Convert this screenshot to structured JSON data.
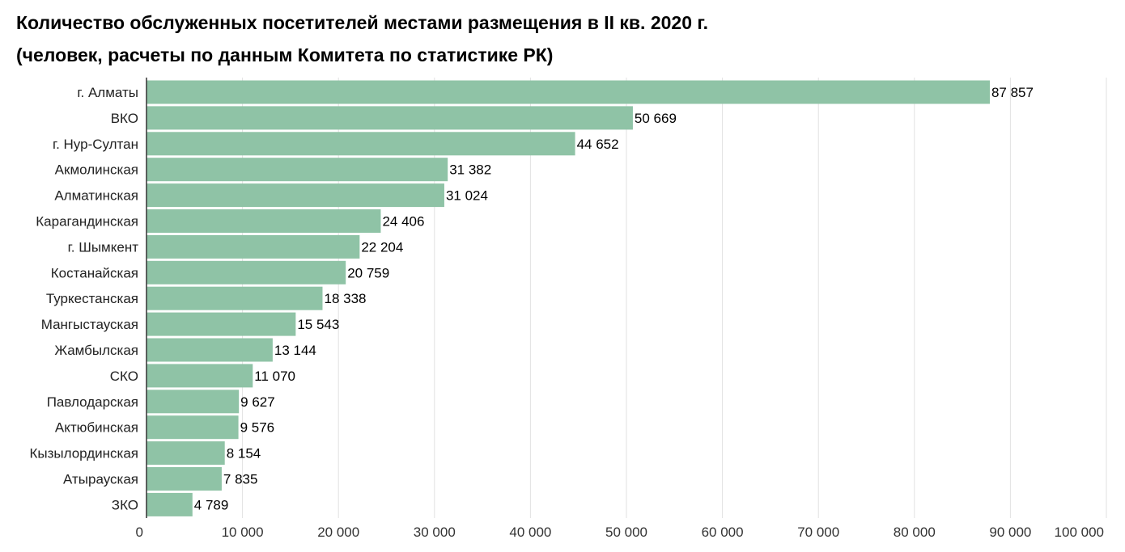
{
  "chart_data": {
    "type": "bar",
    "orientation": "horizontal",
    "title": "Количество обслуженных посетителей местами размещения в II кв. 2020 г.",
    "subtitle": "(человек, расчеты по данным Комитета по статистике РК)",
    "xlabel": "",
    "ylabel": "",
    "categories": [
      "г. Алматы",
      "ВКО",
      "г. Нур-Султан",
      "Акмолинская",
      "Алматинская",
      "Карагандинская",
      "г. Шымкент",
      "Костанайская",
      "Туркестанская",
      "Мангыстауская",
      "Жамбылская",
      "СКО",
      "Павлодарская",
      "Актюбинская",
      "Кызылординская",
      "Атырауская",
      "ЗКО"
    ],
    "values": [
      87857,
      50669,
      44652,
      31382,
      31024,
      24406,
      22204,
      20759,
      18338,
      15543,
      13144,
      11070,
      9627,
      9576,
      8154,
      7835,
      4789
    ],
    "value_labels": [
      "87 857",
      "50 669",
      "44 652",
      "31 382",
      "31 024",
      "24 406",
      "22 204",
      "20 759",
      "18 338",
      "15 543",
      "13 144",
      "11 070",
      "9 627",
      "9 576",
      "8 154",
      "7 835",
      "4 789"
    ],
    "xlim": [
      0,
      100000
    ],
    "ticks": [
      0,
      10000,
      20000,
      30000,
      40000,
      50000,
      60000,
      70000,
      80000,
      90000,
      100000
    ],
    "tick_labels": [
      "0",
      "10 000",
      "20 000",
      "30 000",
      "40 000",
      "50 000",
      "60 000",
      "70 000",
      "80 000",
      "90 000",
      "100 000"
    ],
    "grid": true,
    "legend": "none",
    "colors": {
      "bar": "#8fc3a6",
      "grid": "#e2e2e2",
      "axis": "#333333"
    }
  }
}
